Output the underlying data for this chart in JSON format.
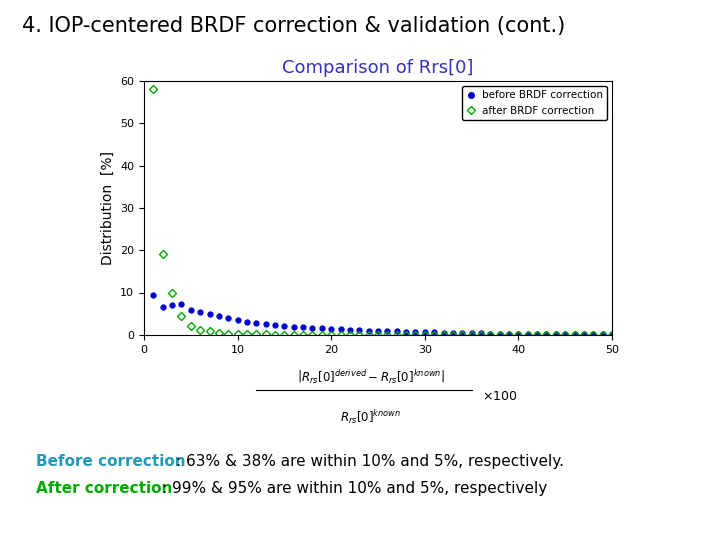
{
  "title_main": "4. IOP-centered BRDF correction & validation (cont.)",
  "title_main_color": "#000000",
  "title_main_fontsize": 15,
  "chart_title": "Comparison of Rrs[0]",
  "chart_title_color": "#3333bb",
  "chart_title_fontsize": 13,
  "ylabel": "Distribution  [%]",
  "ylabel_fontsize": 10,
  "xlim": [
    0,
    50
  ],
  "ylim": [
    0,
    60
  ],
  "yticks": [
    0,
    10,
    20,
    30,
    40,
    50,
    60
  ],
  "xticks": [
    0,
    10,
    20,
    30,
    40,
    50
  ],
  "before_x": [
    1,
    2,
    3,
    4,
    5,
    6,
    7,
    8,
    9,
    10,
    11,
    12,
    13,
    14,
    15,
    16,
    17,
    18,
    19,
    20,
    21,
    22,
    23,
    24,
    25,
    26,
    27,
    28,
    29,
    30,
    31,
    32,
    33,
    34,
    35,
    36,
    37,
    38,
    39,
    40,
    41,
    42,
    43,
    44,
    45,
    46,
    47,
    48,
    49,
    50
  ],
  "before_y": [
    9.3,
    6.5,
    7.0,
    7.2,
    5.8,
    5.5,
    4.8,
    4.5,
    4.0,
    3.5,
    3.0,
    2.8,
    2.5,
    2.3,
    2.0,
    1.9,
    1.8,
    1.6,
    1.5,
    1.4,
    1.3,
    1.2,
    1.1,
    1.0,
    0.9,
    0.9,
    0.8,
    0.7,
    0.7,
    0.6,
    0.6,
    0.5,
    0.5,
    0.5,
    0.4,
    0.4,
    0.3,
    0.3,
    0.3,
    0.3,
    0.2,
    0.2,
    0.2,
    0.2,
    0.2,
    0.15,
    0.15,
    0.1,
    0.1,
    0.1
  ],
  "after_x": [
    1,
    2,
    3,
    4,
    5,
    6,
    7,
    8,
    9,
    10,
    11,
    12,
    13,
    14,
    15,
    16,
    17,
    18,
    19,
    20,
    21,
    22,
    23,
    24,
    25,
    26,
    27,
    28,
    29,
    30,
    31,
    32,
    33,
    34,
    35,
    36,
    37,
    38,
    39,
    40,
    41,
    42,
    43,
    44,
    45,
    46,
    47,
    48,
    49,
    50
  ],
  "after_y": [
    58.0,
    19.0,
    9.8,
    4.5,
    2.0,
    1.2,
    0.8,
    0.5,
    0.3,
    0.2,
    0.15,
    0.1,
    0.08,
    0.06,
    0.05,
    0.04,
    0.03,
    0.03,
    0.02,
    0.02,
    0.01,
    0.01,
    0.01,
    0.01,
    0.01,
    0.01,
    0.005,
    0.005,
    0.005,
    0.005,
    0.005,
    0.005,
    0.005,
    0.005,
    0.005,
    0.005,
    0.003,
    0.003,
    0.003,
    0.003,
    0.003,
    0.002,
    0.002,
    0.002,
    0.002,
    0.002,
    0.001,
    0.001,
    0.001,
    0.001
  ],
  "before_color": "#0000cc",
  "after_color": "#00aa00",
  "legend_before": "before BRDF correction",
  "legend_after": "after BRDF correction",
  "text_before_label": "Before correction",
  "text_before_label_color": "#2299bb",
  "text_before_body": ": 63% & 38% are within 10% and 5%, respectively.",
  "text_after_label": "After correction",
  "text_after_label_color": "#00aa00",
  "text_after_body": ": 99% & 95% are within 10% and 5%, respectively",
  "text_fontsize": 11,
  "bg_color": "#ffffff"
}
